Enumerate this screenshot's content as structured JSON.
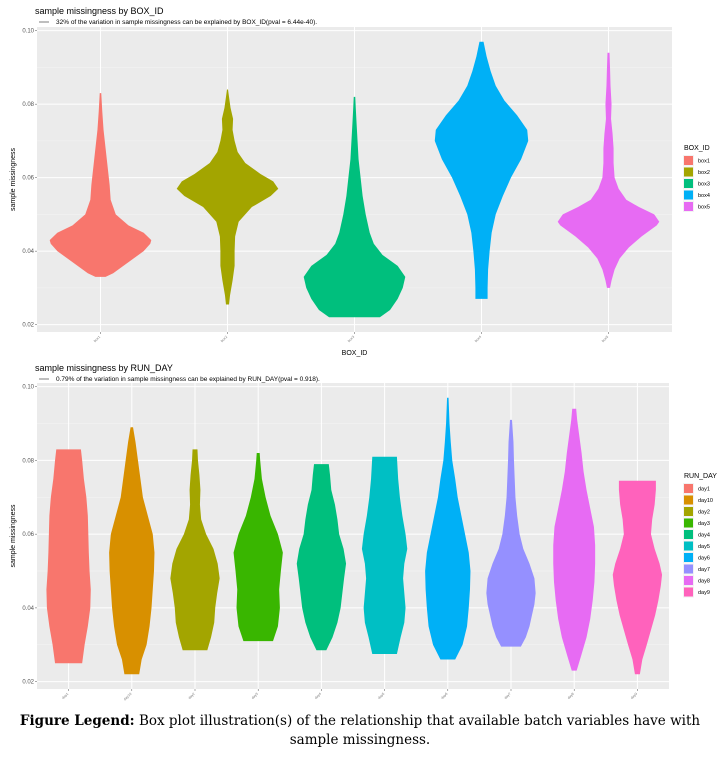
{
  "chart_data": [
    {
      "type": "violin",
      "title": "sample missingness by BOX_ID",
      "subtitle": "32% of the variation in sample missingness can be explained by BOX_ID(pval = 6.44e-40).",
      "xlabel": "BOX_ID",
      "ylabel": "sample missingness",
      "ylim": [
        0.018,
        0.101
      ],
      "yticks": [
        "0.02",
        "0.04",
        "0.06",
        "0.08",
        "0.10"
      ],
      "legend_title": "BOX_ID",
      "categories": [
        "box1",
        "box2",
        "box3",
        "box4",
        "box5"
      ],
      "colors": [
        "#F8766D",
        "#A3A500",
        "#00BF7D",
        "#00B0F6",
        "#E76BF3"
      ],
      "series": [
        {
          "name": "box1",
          "min": 0.033,
          "max": 0.083,
          "profile": [
            [
              0.033,
              0.1
            ],
            [
              0.034,
              0.25
            ],
            [
              0.036,
              0.45
            ],
            [
              0.038,
              0.65
            ],
            [
              0.04,
              0.85
            ],
            [
              0.042,
              0.98
            ],
            [
              0.043,
              1.0
            ],
            [
              0.045,
              0.85
            ],
            [
              0.047,
              0.55
            ],
            [
              0.05,
              0.3
            ],
            [
              0.054,
              0.2
            ],
            [
              0.058,
              0.18
            ],
            [
              0.063,
              0.14
            ],
            [
              0.068,
              0.1
            ],
            [
              0.073,
              0.06
            ],
            [
              0.078,
              0.035
            ],
            [
              0.083,
              0.015
            ]
          ]
        },
        {
          "name": "box2",
          "min": 0.0255,
          "max": 0.084,
          "profile": [
            [
              0.0255,
              0.03
            ],
            [
              0.028,
              0.05
            ],
            [
              0.032,
              0.1
            ],
            [
              0.036,
              0.14
            ],
            [
              0.04,
              0.14
            ],
            [
              0.044,
              0.15
            ],
            [
              0.048,
              0.22
            ],
            [
              0.052,
              0.48
            ],
            [
              0.055,
              0.85
            ],
            [
              0.057,
              1.0
            ],
            [
              0.059,
              0.9
            ],
            [
              0.061,
              0.65
            ],
            [
              0.064,
              0.35
            ],
            [
              0.067,
              0.2
            ],
            [
              0.07,
              0.14
            ],
            [
              0.073,
              0.1
            ],
            [
              0.076,
              0.11
            ],
            [
              0.079,
              0.06
            ],
            [
              0.082,
              0.03
            ],
            [
              0.084,
              0.01
            ]
          ]
        },
        {
          "name": "box3",
          "min": 0.022,
          "max": 0.082,
          "profile": [
            [
              0.022,
              0.5
            ],
            [
              0.024,
              0.7
            ],
            [
              0.027,
              0.85
            ],
            [
              0.03,
              0.95
            ],
            [
              0.033,
              1.0
            ],
            [
              0.036,
              0.85
            ],
            [
              0.039,
              0.55
            ],
            [
              0.042,
              0.38
            ],
            [
              0.045,
              0.3
            ],
            [
              0.05,
              0.22
            ],
            [
              0.055,
              0.16
            ],
            [
              0.06,
              0.12
            ],
            [
              0.065,
              0.08
            ],
            [
              0.07,
              0.06
            ],
            [
              0.075,
              0.04
            ],
            [
              0.079,
              0.025
            ],
            [
              0.082,
              0.015
            ]
          ]
        },
        {
          "name": "box4",
          "min": 0.027,
          "max": 0.097,
          "profile": [
            [
              0.027,
              0.12
            ],
            [
              0.03,
              0.12
            ],
            [
              0.035,
              0.13
            ],
            [
              0.04,
              0.16
            ],
            [
              0.045,
              0.2
            ],
            [
              0.05,
              0.28
            ],
            [
              0.055,
              0.42
            ],
            [
              0.06,
              0.58
            ],
            [
              0.065,
              0.78
            ],
            [
              0.07,
              0.92
            ],
            [
              0.073,
              0.9
            ],
            [
              0.077,
              0.7
            ],
            [
              0.081,
              0.45
            ],
            [
              0.085,
              0.28
            ],
            [
              0.089,
              0.18
            ],
            [
              0.093,
              0.1
            ],
            [
              0.097,
              0.04
            ]
          ]
        },
        {
          "name": "box5",
          "min": 0.03,
          "max": 0.094,
          "profile": [
            [
              0.03,
              0.03
            ],
            [
              0.032,
              0.06
            ],
            [
              0.035,
              0.12
            ],
            [
              0.038,
              0.22
            ],
            [
              0.041,
              0.4
            ],
            [
              0.044,
              0.65
            ],
            [
              0.047,
              0.95
            ],
            [
              0.048,
              1.0
            ],
            [
              0.05,
              0.9
            ],
            [
              0.052,
              0.6
            ],
            [
              0.054,
              0.35
            ],
            [
              0.057,
              0.2
            ],
            [
              0.06,
              0.12
            ],
            [
              0.064,
              0.1
            ],
            [
              0.068,
              0.1
            ],
            [
              0.072,
              0.08
            ],
            [
              0.076,
              0.05
            ],
            [
              0.08,
              0.06
            ],
            [
              0.085,
              0.04
            ],
            [
              0.09,
              0.03
            ],
            [
              0.094,
              0.02
            ]
          ]
        }
      ]
    },
    {
      "type": "violin",
      "title": "sample missingness by RUN_DAY",
      "subtitle": "0.79% of the variation in sample missingness can be explained by RUN_DAY(pval = 0.918).",
      "xlabel": "RUN_DAY",
      "ylabel": "sample missingness",
      "ylim": [
        0.018,
        0.101
      ],
      "yticks": [
        "0.02",
        "0.04",
        "0.06",
        "0.08",
        "0.10"
      ],
      "legend_title": "RUN_DAY",
      "categories": [
        "day1",
        "day10",
        "day2",
        "day3",
        "day4",
        "day5",
        "day6",
        "day7",
        "day8",
        "day9"
      ],
      "colors": [
        "#F8766D",
        "#D89000",
        "#A3A500",
        "#39B600",
        "#00BF7D",
        "#00BFC4",
        "#00B0F6",
        "#9590FF",
        "#E76BF3",
        "#FF62BC"
      ],
      "series": [
        {
          "name": "day1",
          "min": 0.025,
          "max": 0.083,
          "profile": [
            [
              0.025,
              0.55
            ],
            [
              0.03,
              0.65
            ],
            [
              0.035,
              0.78
            ],
            [
              0.04,
              0.88
            ],
            [
              0.045,
              0.9
            ],
            [
              0.05,
              0.85
            ],
            [
              0.055,
              0.82
            ],
            [
              0.06,
              0.8
            ],
            [
              0.065,
              0.78
            ],
            [
              0.07,
              0.72
            ],
            [
              0.075,
              0.62
            ],
            [
              0.08,
              0.55
            ],
            [
              0.083,
              0.5
            ]
          ]
        },
        {
          "name": "day10",
          "min": 0.022,
          "max": 0.089,
          "profile": [
            [
              0.022,
              0.3
            ],
            [
              0.026,
              0.4
            ],
            [
              0.03,
              0.6
            ],
            [
              0.035,
              0.72
            ],
            [
              0.04,
              0.8
            ],
            [
              0.045,
              0.85
            ],
            [
              0.05,
              0.9
            ],
            [
              0.055,
              0.92
            ],
            [
              0.06,
              0.85
            ],
            [
              0.065,
              0.65
            ],
            [
              0.07,
              0.45
            ],
            [
              0.075,
              0.35
            ],
            [
              0.08,
              0.25
            ],
            [
              0.085,
              0.15
            ],
            [
              0.089,
              0.05
            ]
          ]
        },
        {
          "name": "day2",
          "min": 0.0285,
          "max": 0.083,
          "profile": [
            [
              0.0285,
              0.5
            ],
            [
              0.032,
              0.65
            ],
            [
              0.036,
              0.78
            ],
            [
              0.04,
              0.82
            ],
            [
              0.044,
              0.9
            ],
            [
              0.048,
              1.0
            ],
            [
              0.052,
              0.92
            ],
            [
              0.056,
              0.75
            ],
            [
              0.06,
              0.45
            ],
            [
              0.064,
              0.25
            ],
            [
              0.068,
              0.2
            ],
            [
              0.072,
              0.22
            ],
            [
              0.076,
              0.18
            ],
            [
              0.08,
              0.12
            ],
            [
              0.083,
              0.1
            ]
          ]
        },
        {
          "name": "day3",
          "min": 0.031,
          "max": 0.082,
          "profile": [
            [
              0.031,
              0.6
            ],
            [
              0.035,
              0.8
            ],
            [
              0.04,
              0.88
            ],
            [
              0.045,
              0.85
            ],
            [
              0.05,
              0.92
            ],
            [
              0.055,
              1.0
            ],
            [
              0.06,
              0.8
            ],
            [
              0.065,
              0.5
            ],
            [
              0.07,
              0.3
            ],
            [
              0.075,
              0.15
            ],
            [
              0.08,
              0.08
            ],
            [
              0.082,
              0.06
            ]
          ]
        },
        {
          "name": "day4",
          "min": 0.0285,
          "max": 0.079,
          "profile": [
            [
              0.0285,
              0.2
            ],
            [
              0.032,
              0.45
            ],
            [
              0.036,
              0.65
            ],
            [
              0.04,
              0.78
            ],
            [
              0.044,
              0.85
            ],
            [
              0.048,
              0.92
            ],
            [
              0.052,
              1.0
            ],
            [
              0.056,
              0.9
            ],
            [
              0.06,
              0.72
            ],
            [
              0.064,
              0.65
            ],
            [
              0.068,
              0.55
            ],
            [
              0.072,
              0.4
            ],
            [
              0.076,
              0.35
            ],
            [
              0.079,
              0.3
            ]
          ]
        },
        {
          "name": "day5",
          "min": 0.0275,
          "max": 0.081,
          "profile": [
            [
              0.0275,
              0.5
            ],
            [
              0.032,
              0.65
            ],
            [
              0.036,
              0.8
            ],
            [
              0.04,
              0.85
            ],
            [
              0.044,
              0.8
            ],
            [
              0.048,
              0.75
            ],
            [
              0.052,
              0.8
            ],
            [
              0.056,
              0.92
            ],
            [
              0.06,
              0.85
            ],
            [
              0.065,
              0.72
            ],
            [
              0.07,
              0.62
            ],
            [
              0.075,
              0.55
            ],
            [
              0.081,
              0.5
            ]
          ]
        },
        {
          "name": "day6",
          "min": 0.026,
          "max": 0.097,
          "profile": [
            [
              0.026,
              0.3
            ],
            [
              0.03,
              0.6
            ],
            [
              0.035,
              0.78
            ],
            [
              0.04,
              0.85
            ],
            [
              0.045,
              0.9
            ],
            [
              0.05,
              0.92
            ],
            [
              0.055,
              0.85
            ],
            [
              0.06,
              0.7
            ],
            [
              0.065,
              0.55
            ],
            [
              0.07,
              0.4
            ],
            [
              0.075,
              0.3
            ],
            [
              0.08,
              0.18
            ],
            [
              0.085,
              0.12
            ],
            [
              0.09,
              0.07
            ],
            [
              0.097,
              0.03
            ]
          ]
        },
        {
          "name": "day7",
          "min": 0.0295,
          "max": 0.091,
          "profile": [
            [
              0.0295,
              0.4
            ],
            [
              0.032,
              0.6
            ],
            [
              0.035,
              0.75
            ],
            [
              0.038,
              0.85
            ],
            [
              0.041,
              0.95
            ],
            [
              0.044,
              1.0
            ],
            [
              0.048,
              0.95
            ],
            [
              0.052,
              0.75
            ],
            [
              0.056,
              0.5
            ],
            [
              0.06,
              0.35
            ],
            [
              0.065,
              0.25
            ],
            [
              0.07,
              0.18
            ],
            [
              0.075,
              0.15
            ],
            [
              0.08,
              0.12
            ],
            [
              0.085,
              0.1
            ],
            [
              0.091,
              0.04
            ]
          ]
        },
        {
          "name": "day8",
          "min": 0.023,
          "max": 0.094,
          "profile": [
            [
              0.023,
              0.1
            ],
            [
              0.027,
              0.28
            ],
            [
              0.032,
              0.5
            ],
            [
              0.037,
              0.65
            ],
            [
              0.042,
              0.75
            ],
            [
              0.047,
              0.82
            ],
            [
              0.052,
              0.85
            ],
            [
              0.057,
              0.85
            ],
            [
              0.062,
              0.8
            ],
            [
              0.067,
              0.65
            ],
            [
              0.072,
              0.5
            ],
            [
              0.077,
              0.38
            ],
            [
              0.082,
              0.3
            ],
            [
              0.087,
              0.2
            ],
            [
              0.091,
              0.12
            ],
            [
              0.094,
              0.08
            ]
          ]
        },
        {
          "name": "day9",
          "min": 0.022,
          "max": 0.0745,
          "profile": [
            [
              0.022,
              0.1
            ],
            [
              0.026,
              0.2
            ],
            [
              0.03,
              0.38
            ],
            [
              0.034,
              0.55
            ],
            [
              0.038,
              0.72
            ],
            [
              0.042,
              0.85
            ],
            [
              0.046,
              0.95
            ],
            [
              0.049,
              1.0
            ],
            [
              0.052,
              0.9
            ],
            [
              0.056,
              0.7
            ],
            [
              0.06,
              0.55
            ],
            [
              0.064,
              0.6
            ],
            [
              0.068,
              0.7
            ],
            [
              0.072,
              0.75
            ],
            [
              0.0745,
              0.75
            ]
          ]
        }
      ]
    }
  ],
  "caption": {
    "label": "Figure Legend:",
    "text": "Box plot illustration(s) of the relationship that available batch variables have with sample missingness."
  }
}
